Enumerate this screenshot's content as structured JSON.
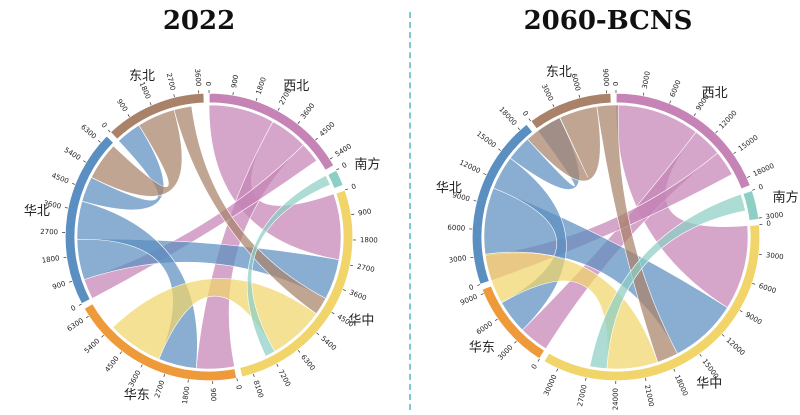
{
  "chart_data": [
    {
      "type": "chord",
      "title": "2022",
      "unit_note": "",
      "regions": [
        {
          "name": "西北",
          "color": "#c584b5",
          "total": 5400
        },
        {
          "name": "南方",
          "color": "#8ccfc4",
          "total": 600
        },
        {
          "name": "华中",
          "color": "#f1d56b",
          "total": 8600
        },
        {
          "name": "华东",
          "color": "#ee9a3b",
          "total": 6400
        },
        {
          "name": "华北",
          "color": "#5b8fc1",
          "total": 6500
        },
        {
          "name": "东北",
          "color": "#a98269",
          "total": 3700
        }
      ],
      "ticks": [
        {
          "region": "西北",
          "labels": [
            "0",
            "900",
            "1800",
            "2700",
            "3600",
            "4500",
            "5400"
          ]
        },
        {
          "region": "南方",
          "labels": [
            "0"
          ]
        },
        {
          "region": "华中",
          "labels": [
            "0",
            "900",
            "1800",
            "2700",
            "3600",
            "4500",
            "5400",
            "6300",
            "7200",
            "8100"
          ]
        },
        {
          "region": "华东",
          "labels": [
            "0",
            "900",
            "1800",
            "2700",
            "3600",
            "4500",
            "5400",
            "6300"
          ]
        },
        {
          "region": "华北",
          "labels": [
            "0",
            "900",
            "1800",
            "2700",
            "3600",
            "4500",
            "5400",
            "6300"
          ]
        },
        {
          "region": "东北",
          "labels": [
            "0",
            "900",
            "1800",
            "2700",
            "3600"
          ]
        }
      ],
      "flows": [
        {
          "from": "西北",
          "to": "华中",
          "value": 2600
        },
        {
          "from": "西北",
          "to": "华东",
          "value": 1500
        },
        {
          "from": "西北",
          "to": "华北",
          "value": 800
        },
        {
          "from": "华北",
          "to": "华中",
          "value": 1600
        },
        {
          "from": "华北",
          "to": "华东",
          "value": 1500
        },
        {
          "from": "华北",
          "to": "东北",
          "value": 1000
        },
        {
          "from": "东北",
          "to": "华北",
          "value": 1500
        },
        {
          "from": "东北",
          "to": "华中",
          "value": 700
        },
        {
          "from": "华中",
          "to": "华东",
          "value": 2200
        },
        {
          "from": "南方",
          "to": "华中",
          "value": 400
        }
      ]
    },
    {
      "type": "chord",
      "title": "2060-BCNS",
      "regions": [
        {
          "name": "西北",
          "color": "#c584b5",
          "total": 18500
        },
        {
          "name": "南方",
          "color": "#8ccfc4",
          "total": 3200
        },
        {
          "name": "华中",
          "color": "#f1d56b",
          "total": 33500
        },
        {
          "name": "华东",
          "color": "#ee9a3b",
          "total": 9800
        },
        {
          "name": "华北",
          "color": "#5b8fc1",
          "total": 19000
        },
        {
          "name": "东北",
          "color": "#a98269",
          "total": 9200
        }
      ],
      "ticks": [
        {
          "region": "西北",
          "labels": [
            "0",
            "3000",
            "6000",
            "9000",
            "12000",
            "15000",
            "18000"
          ]
        },
        {
          "region": "南方",
          "labels": [
            "0",
            "3000"
          ]
        },
        {
          "region": "华中",
          "labels": [
            "0",
            "3000",
            "6000",
            "9000",
            "12000",
            "15000",
            "18000",
            "21000",
            "24000",
            "27000",
            "30000"
          ]
        },
        {
          "region": "华东",
          "labels": [
            "0",
            "3000",
            "6000",
            "9000"
          ]
        },
        {
          "region": "华北",
          "labels": [
            "0",
            "3000",
            "6000",
            "9000",
            "12000",
            "15000",
            "18000"
          ]
        },
        {
          "region": "东北",
          "labels": [
            "0",
            "3000",
            "6000",
            "9000"
          ]
        }
      ],
      "flows": [
        {
          "from": "西北",
          "to": "华中",
          "value": 10000
        },
        {
          "from": "西北",
          "to": "华东",
          "value": 3500
        },
        {
          "from": "西北",
          "to": "华北",
          "value": 3000
        },
        {
          "from": "华北",
          "to": "华中",
          "value": 8000
        },
        {
          "from": "华北",
          "to": "华东",
          "value": 4000
        },
        {
          "from": "华北",
          "to": "东北",
          "value": 3000
        },
        {
          "from": "东北",
          "to": "华北",
          "value": 4500
        },
        {
          "from": "东北",
          "to": "华中",
          "value": 2500
        },
        {
          "from": "华中",
          "to": "华东",
          "value": 6000
        },
        {
          "from": "南方",
          "to": "华中",
          "value": 2000
        }
      ]
    }
  ]
}
